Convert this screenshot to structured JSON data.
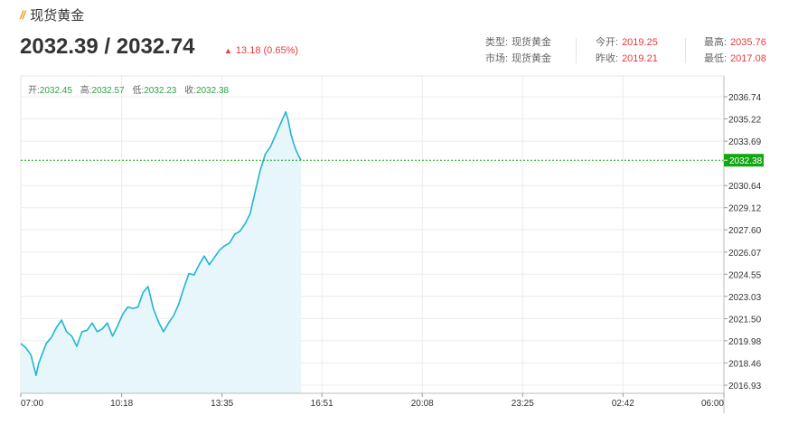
{
  "header": {
    "title": "现货黄金",
    "price": "2032.39 / 2032.74",
    "change": "13.18 (0.65%)"
  },
  "info": {
    "type_label": "类型:",
    "type_value": "现货黄金",
    "market_label": "市场:",
    "market_value": "现货黄金",
    "open_label": "今开:",
    "open_value": "2019.25",
    "prev_close_label": "昨收:",
    "prev_close_value": "2019.21",
    "high_label": "最高:",
    "high_value": "2035.76",
    "low_label": "最低:",
    "low_value": "2017.08"
  },
  "ohlc": {
    "open_label": "开:",
    "open_value": "2032.45",
    "high_label": "高:",
    "high_value": "2032.57",
    "low_label": "低:",
    "low_value": "2032.23",
    "close_label": "收:",
    "close_value": "2032.38"
  },
  "colors": {
    "line": "#21b5d0",
    "fill": "#e6f6fa",
    "up": "#e8393d",
    "current_price_tag": "#11a711",
    "slash_icon": "#f0a020"
  },
  "chart_data": {
    "type": "area",
    "ylim": [
      2016.93,
      2036.74
    ],
    "y_ticks": [
      "2036.74",
      "2035.22",
      "2033.69",
      "2032.38",
      "2030.64",
      "2029.12",
      "2027.60",
      "2026.07",
      "2024.55",
      "2023.03",
      "2021.50",
      "2019.98",
      "2018.46",
      "2016.93"
    ],
    "x_ticks": [
      "07:00",
      "10:18",
      "13:35",
      "16:51",
      "20:08",
      "23:25",
      "02:42",
      "06:00"
    ],
    "x_tick_minutes": [
      0,
      198,
      395,
      591,
      788,
      985,
      1182,
      1380
    ],
    "current_price": 2032.38,
    "current_price_label": "2032.38",
    "series": [
      {
        "x_minutes": [
          0,
          10,
          20,
          25,
          30,
          35,
          40,
          50,
          60,
          70,
          80,
          90,
          100,
          110,
          120,
          130,
          140,
          150,
          160,
          170,
          180,
          190,
          200,
          210,
          220,
          230,
          240,
          250,
          260,
          270,
          280,
          290,
          300,
          310,
          320,
          330,
          340,
          350,
          360,
          370,
          380,
          390,
          400,
          410,
          420,
          430,
          440,
          450,
          460,
          470,
          480,
          490,
          500,
          510,
          520,
          525,
          530,
          535,
          540,
          545,
          550
        ],
        "values": [
          2019.8,
          2019.5,
          2019.0,
          2018.3,
          2017.6,
          2018.4,
          2018.9,
          2019.8,
          2020.2,
          2020.9,
          2021.4,
          2020.6,
          2020.3,
          2019.6,
          2020.6,
          2020.7,
          2021.2,
          2020.6,
          2020.8,
          2021.2,
          2020.3,
          2021.0,
          2021.8,
          2022.3,
          2022.2,
          2022.3,
          2023.3,
          2023.7,
          2022.2,
          2021.3,
          2020.6,
          2021.2,
          2021.7,
          2022.5,
          2023.6,
          2024.6,
          2024.5,
          2025.2,
          2025.8,
          2025.2,
          2025.7,
          2026.2,
          2026.5,
          2026.7,
          2027.3,
          2027.5,
          2028.0,
          2028.7,
          2030.2,
          2031.7,
          2032.8,
          2033.3,
          2034.1,
          2034.9,
          2035.7,
          2035.1,
          2034.2,
          2033.6,
          2033.1,
          2032.7,
          2032.38
        ]
      }
    ]
  }
}
